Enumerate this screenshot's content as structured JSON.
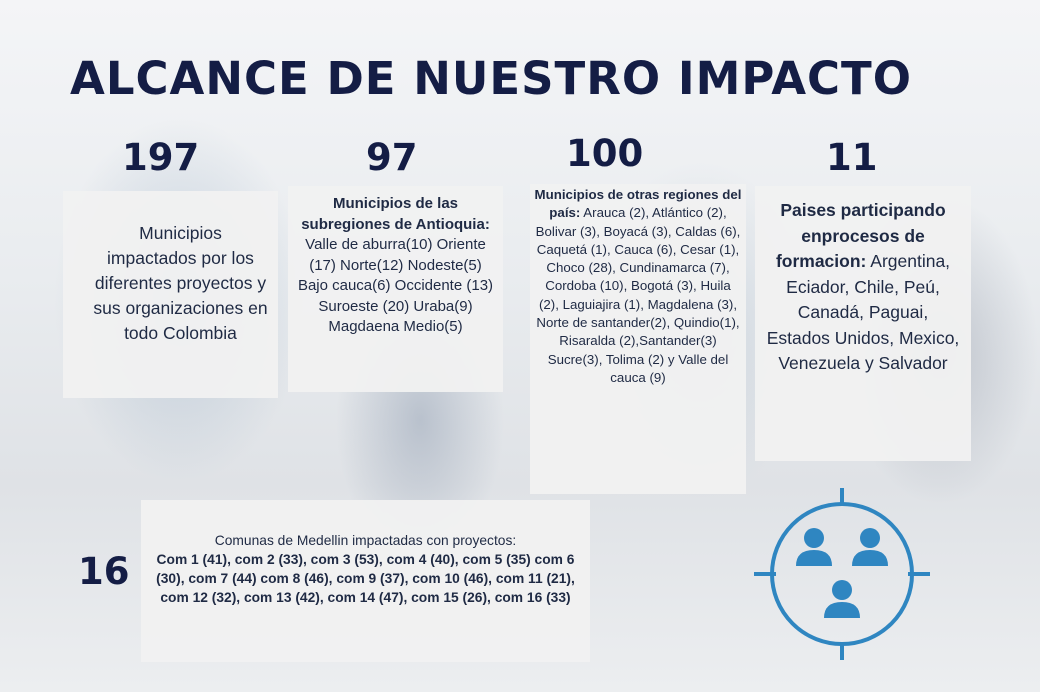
{
  "title": "ALCANCE DE NUESTRO IMPACTO",
  "stats": [
    {
      "number": "197",
      "bold": "",
      "text": "Municipios impactados por los diferentes proyectos y sus organizaciones en todo Colombia"
    },
    {
      "number": "97",
      "bold": "Municipios de las subregiones de Antioquia:",
      "text": " Valle de aburra(10) Oriente (17) Norte(12) Nodeste(5) Bajo cauca(6) Occidente (13) Suroeste (20) Uraba(9) Magdaena Medio(5)"
    },
    {
      "number": "100",
      "bold": "Municipios de otras regiones del país:",
      "text": " Arauca (2), Atlántico (2), Bolivar (3), Boyacá (3), Caldas (6), Caquetá (1), Cauca (6), Cesar (1), Choco (28), Cundinamarca (7), Cordoba (10), Bogotá (3), Huila (2), Laguiajira (1), Magdalena (3), Norte de santander(2), Quindio(1), Risaralda (2),Santander(3) Sucre(3), Tolima (2) y Valle del cauca (9)"
    },
    {
      "number": "11",
      "bold": "Paises participando enprocesos de formacion:",
      "text": " Argentina, Eciador, Chile, Peú, Canadá, Paguai, Estados Unidos, Mexico, Venezuela y Salvador"
    }
  ],
  "comunas": {
    "number": "16",
    "lead": "Comunas de Medellin impactadas con proyectos:",
    "list": "Com 1 (41), com 2 (33), com 3 (53), com 4 (40), com 5 (35) com 6 (30), com 7 (44) com 8 (46), com 9 (37), com 10 (46), com 11 (21), com 12 (32), com 13 (42), com 14 (47), com 15 (26), com 16 (33)"
  },
  "icon": {
    "name": "target-group-icon",
    "color": "#2f86c1"
  }
}
